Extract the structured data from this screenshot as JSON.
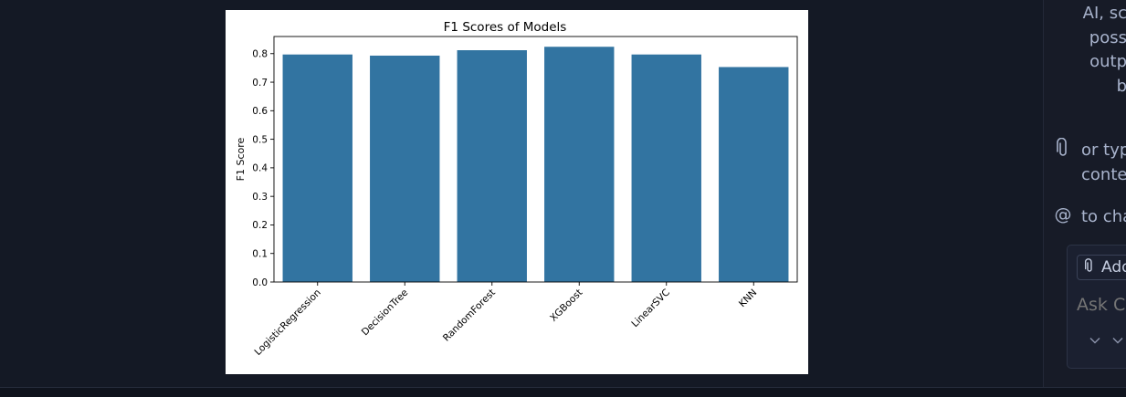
{
  "chart_data": {
    "type": "bar",
    "title": "F1 Scores of Models",
    "xlabel": "",
    "ylabel": "F1 Score",
    "ylim": [
      0,
      0.86
    ],
    "yticks": [
      "0.0",
      "0.1",
      "0.2",
      "0.3",
      "0.4",
      "0.5",
      "0.6",
      "0.7",
      "0.8"
    ],
    "categories": [
      "LogisticRegression",
      "DecisionTree",
      "RandomForest",
      "XGBoost",
      "LinearSVC",
      "KNN"
    ],
    "values": [
      0.797,
      0.793,
      0.812,
      0.824,
      0.797,
      0.753
    ],
    "bar_color": "#3274a1",
    "grid": false
  },
  "side_panel": {
    "help_lines": [
      "AI, sc",
      "poss",
      "outp",
      "b"
    ],
    "attach_hint": "or typ",
    "attach_hint_line2": "conte",
    "mention_hint": "to cha",
    "mention_symbol": "@",
    "add_context_label": "Add",
    "chat_placeholder": "Ask Co"
  },
  "colors": {
    "editor_bg": "#141925",
    "panel_bg": "#171b27",
    "placeholder": "#5d6690"
  }
}
